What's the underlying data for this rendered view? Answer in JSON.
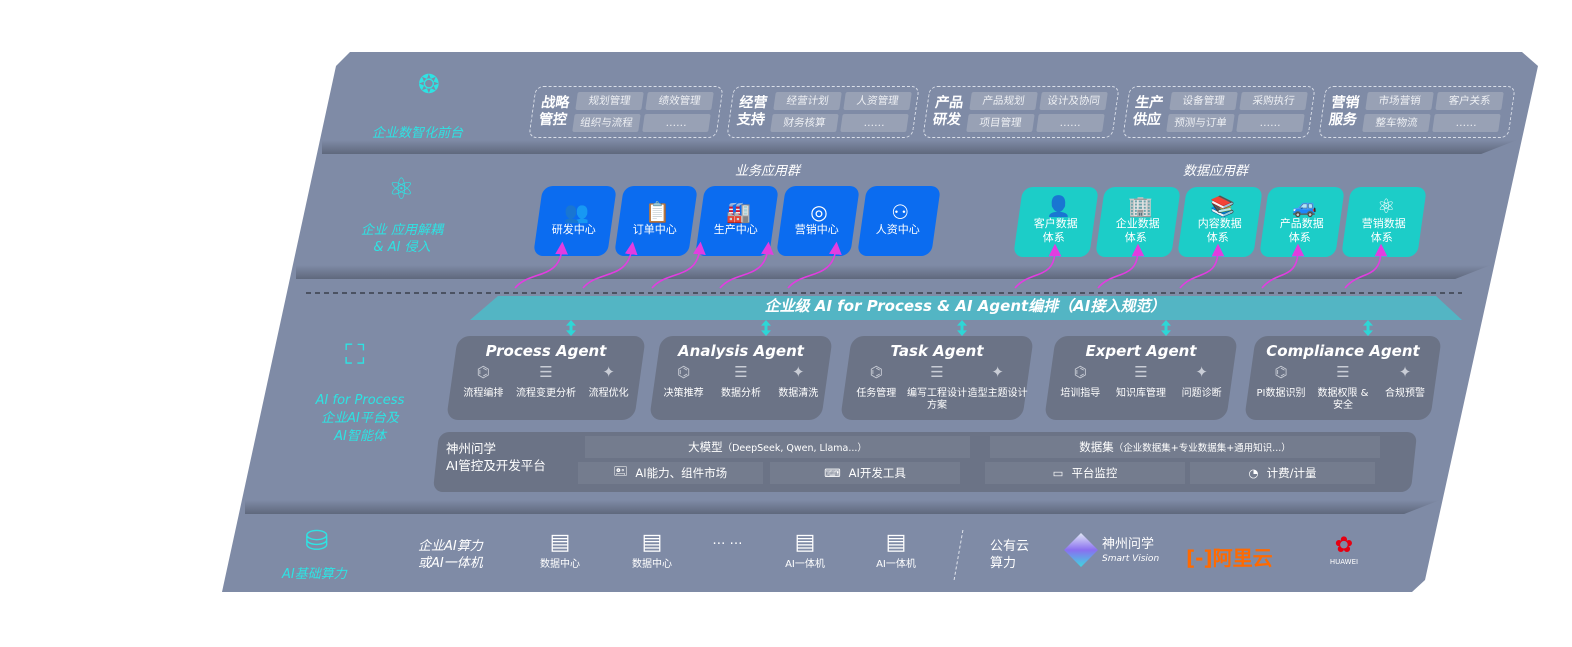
{
  "top": {
    "label": "企业数智化前台",
    "icon": "brain-icon",
    "groups": [
      {
        "title": "战略管控",
        "items": [
          "规划管理",
          "绩效管理",
          "组织与流程",
          "……"
        ]
      },
      {
        "title": "经营支持",
        "items": [
          "经营计划",
          "人资管理",
          "财务核算",
          "……"
        ]
      },
      {
        "title": "产品研发",
        "items": [
          "产品规划",
          "设计及协同",
          "项目管理",
          "……"
        ]
      },
      {
        "title": "生产供应",
        "items": [
          "设备管理",
          "采购执行",
          "预测与订单",
          "……"
        ]
      },
      {
        "title": "营销服务",
        "items": [
          "市场营销",
          "客户关系",
          "整车物流",
          "……"
        ]
      }
    ]
  },
  "apps": {
    "label_line1": "企业 应用解耦",
    "label_line2": "& AI 侵入",
    "icon": "molecule-icon",
    "business_title": "业务应用群",
    "business": [
      {
        "label": "研发中心",
        "icon": "team-icon"
      },
      {
        "label": "订单中心",
        "icon": "clipboard-icon"
      },
      {
        "label": "生产中心",
        "icon": "factory-icon"
      },
      {
        "label": "营销中心",
        "icon": "target-icon"
      },
      {
        "label": "人资中心",
        "icon": "people-icon"
      }
    ],
    "data_title": "数据应用群",
    "data": [
      {
        "label1": "客户数据",
        "label2": "体系",
        "icon": "user-icon"
      },
      {
        "label1": "企业数据",
        "label2": "体系",
        "icon": "building-icon"
      },
      {
        "label1": "内容数据",
        "label2": "体系",
        "icon": "books-icon"
      },
      {
        "label1": "产品数据",
        "label2": "体系",
        "icon": "car-icon"
      },
      {
        "label1": "营销数据",
        "label2": "体系",
        "icon": "atom-icon"
      }
    ]
  },
  "banner": "企业级 AI for Process & AI Agent编排（AI接入规范）",
  "ai": {
    "label1": "AI for Process",
    "label2": "企业AI平台及",
    "label3": "AI智能体",
    "icon": "face-scan-icon",
    "agents": [
      {
        "title": "Process Agent",
        "features": [
          "流程编排",
          "流程变更分析",
          "流程优化"
        ]
      },
      {
        "title": "Analysis Agent",
        "features": [
          "决策推荐",
          "数据分析",
          "数据清洗"
        ]
      },
      {
        "title": "Task Agent",
        "features": [
          "任务管理",
          "编写工程设计方案",
          "造型主题设计"
        ]
      },
      {
        "title": "Expert Agent",
        "features": [
          "培训指导",
          "知识库管理",
          "问题诊断"
        ]
      },
      {
        "title": "Compliance Agent",
        "features": [
          "PI数据识别",
          "数据权限 & 安全",
          "合规预警"
        ]
      }
    ]
  },
  "platform": {
    "title1": "神州问学",
    "title2": "AI管控及开发平台",
    "model": "大模型",
    "model_note": "（DeepSeek, Qwen, Llama...）",
    "dataset": "数据集",
    "dataset_note": "（企业数据集+专业数据集+通用知识...）",
    "tools": [
      "AI能力、组件市场",
      "AI开发工具",
      "平台监控",
      "计费/计量"
    ]
  },
  "infra": {
    "label": "AI基础算力",
    "icon": "database-icon",
    "enterprise1": "企业AI算力",
    "enterprise2": "或AI一体机",
    "items": [
      "数据中心",
      "数据中心",
      "AI一体机",
      "AI一体机"
    ],
    "ellipsis": "… …",
    "public1": "公有云",
    "public2": "算力",
    "vendor1_cn": "神州问学",
    "vendor1_en": "Smart Vision",
    "vendor2": "阿里云",
    "vendor3": "HUAWEI"
  },
  "colors": {
    "panel": "#7f8ba6",
    "cyan": "#2ee3e3",
    "blue": "#0b6cf0",
    "teal": "#1ccdc8",
    "magenta": "#e23de0",
    "alibaba": "#ff6a00",
    "huawei": "#e60012"
  }
}
